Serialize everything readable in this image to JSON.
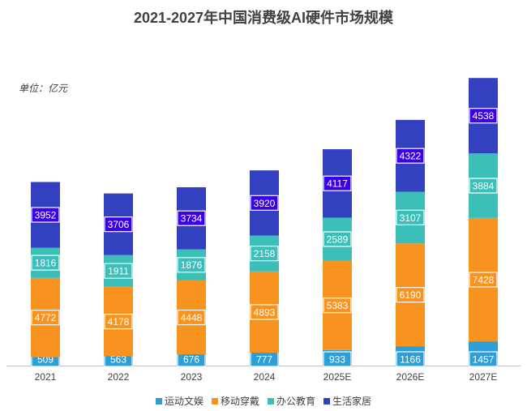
{
  "chart_data": {
    "type": "bar",
    "stacked": true,
    "title": "2021-2027年中国消费级AI硬件市场规模",
    "unit_label": "单位：亿元",
    "categories": [
      "2021",
      "2022",
      "2023",
      "2024",
      "2025E",
      "2026E",
      "2027E"
    ],
    "series": [
      {
        "name": "运动文娱",
        "color": "#2E9FD6",
        "label_bg": "#2E9FD6",
        "values": [
          509,
          563,
          676,
          777,
          933,
          1166,
          1457
        ]
      },
      {
        "name": "移动穿戴",
        "color": "#F7931E",
        "label_bg": "#F7931E",
        "values": [
          4772,
          4178,
          4448,
          4893,
          5383,
          6190,
          7428
        ]
      },
      {
        "name": "办公教育",
        "color": "#3BBFB8",
        "label_bg": "#3BBFB8",
        "values": [
          1816,
          1911,
          1876,
          2158,
          2589,
          3107,
          3884
        ]
      },
      {
        "name": "生活家居",
        "color": "#3340BF",
        "label_bg": "#3A00E8",
        "values": [
          3952,
          3706,
          3734,
          3920,
          4117,
          4322,
          4538
        ]
      }
    ],
    "ylim": [
      0,
      18000
    ],
    "grid": false,
    "legend_position": "bottom"
  }
}
